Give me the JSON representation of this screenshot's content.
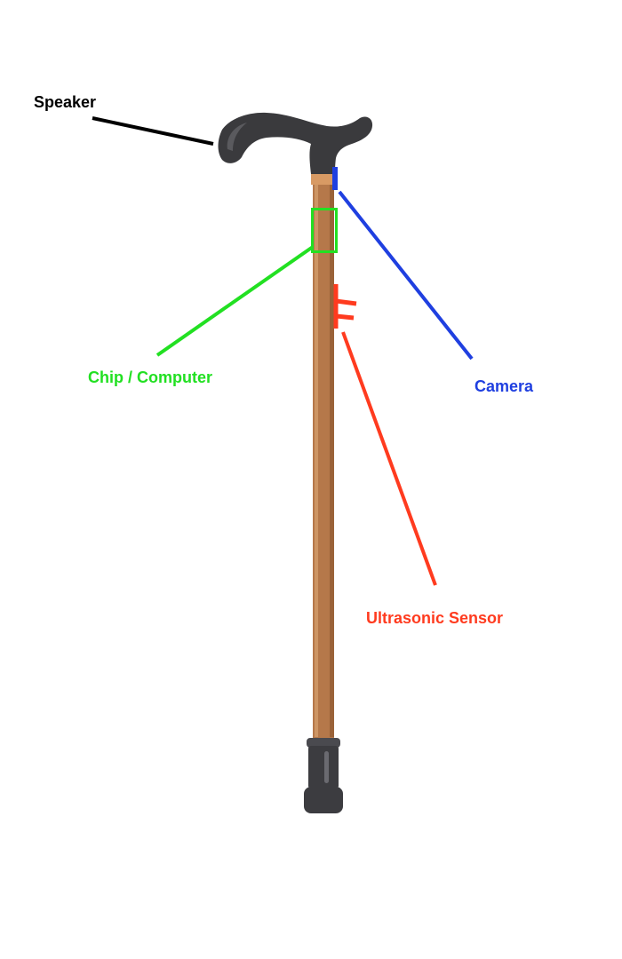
{
  "labels": {
    "speaker": "Speaker",
    "chip": "Chip / Computer",
    "camera": "Camera",
    "ultrasonic": "Ultrasonic Sensor"
  },
  "colors": {
    "speaker": "#000000",
    "chip": "#22e022",
    "camera": "#1f3fe0",
    "ultrasonic": "#ff3b1f",
    "handle": "#3a3a3d",
    "handle_highlight": "#5a5a5e",
    "shaft": "#b5784a",
    "shaft_light": "#cd9564",
    "shaft_dark": "#9a6238",
    "collar": "#d89a64",
    "tip": "#3c3c40",
    "tip_ring": "#4a4a4f"
  }
}
